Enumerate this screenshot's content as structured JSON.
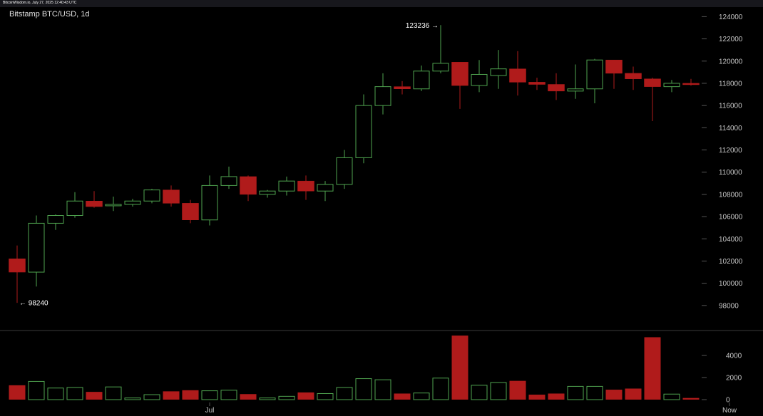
{
  "header": {
    "source_text": "BitcoinWisdom.io, July 27, 2025 12:40:43 UTC"
  },
  "chart_data": {
    "type": "candlestick",
    "title": "Bitstamp BTC/USD, 1d",
    "price_axis": {
      "ticks": [
        98000,
        100000,
        102000,
        104000,
        106000,
        108000,
        110000,
        112000,
        114000,
        116000,
        118000,
        120000,
        122000,
        124000
      ],
      "range": [
        96000,
        125500
      ]
    },
    "volume_axis": {
      "ticks": [
        0,
        2000,
        4000
      ],
      "range": [
        0,
        6000
      ]
    },
    "x_tick_labels": [
      {
        "index": 10,
        "label": "Jul"
      },
      {
        "index": 37,
        "label": "Now"
      }
    ],
    "annotations": [
      {
        "index": 0,
        "value": 98240,
        "text": "← 98240",
        "side": "right"
      },
      {
        "index": 22,
        "value": 123236,
        "text": "123236 →",
        "side": "left"
      }
    ],
    "candles": [
      {
        "o": 102200,
        "h": 103400,
        "l": 98240,
        "c": 101000
      },
      {
        "o": 101000,
        "h": 106100,
        "l": 99700,
        "c": 105400
      },
      {
        "o": 105400,
        "h": 106200,
        "l": 104800,
        "c": 106100
      },
      {
        "o": 106100,
        "h": 108200,
        "l": 105900,
        "c": 107400
      },
      {
        "o": 107400,
        "h": 108300,
        "l": 106800,
        "c": 106900
      },
      {
        "o": 107000,
        "h": 107800,
        "l": 106500,
        "c": 107100
      },
      {
        "o": 107100,
        "h": 107600,
        "l": 106900,
        "c": 107400
      },
      {
        "o": 107400,
        "h": 108500,
        "l": 107200,
        "c": 108400
      },
      {
        "o": 108400,
        "h": 108800,
        "l": 106900,
        "c": 107200
      },
      {
        "o": 107200,
        "h": 107500,
        "l": 105400,
        "c": 105700
      },
      {
        "o": 105700,
        "h": 109700,
        "l": 105200,
        "c": 108800
      },
      {
        "o": 108800,
        "h": 110500,
        "l": 108500,
        "c": 109600
      },
      {
        "o": 109600,
        "h": 109700,
        "l": 107400,
        "c": 108000
      },
      {
        "o": 108000,
        "h": 108400,
        "l": 107700,
        "c": 108300
      },
      {
        "o": 108300,
        "h": 109600,
        "l": 107900,
        "c": 109200
      },
      {
        "o": 109200,
        "h": 109700,
        "l": 107500,
        "c": 108300
      },
      {
        "o": 108300,
        "h": 109200,
        "l": 107400,
        "c": 108900
      },
      {
        "o": 108900,
        "h": 112000,
        "l": 108500,
        "c": 111300
      },
      {
        "o": 111300,
        "h": 117000,
        "l": 110800,
        "c": 116000
      },
      {
        "o": 116000,
        "h": 118900,
        "l": 115200,
        "c": 117700
      },
      {
        "o": 117700,
        "h": 118200,
        "l": 117000,
        "c": 117500
      },
      {
        "o": 117500,
        "h": 119600,
        "l": 117300,
        "c": 119100
      },
      {
        "o": 119100,
        "h": 123236,
        "l": 118900,
        "c": 119800
      },
      {
        "o": 119900,
        "h": 119900,
        "l": 115700,
        "c": 117800
      },
      {
        "o": 117800,
        "h": 120100,
        "l": 117200,
        "c": 118800
      },
      {
        "o": 118700,
        "h": 121000,
        "l": 117500,
        "c": 119300
      },
      {
        "o": 119300,
        "h": 120900,
        "l": 116900,
        "c": 118100
      },
      {
        "o": 118100,
        "h": 118500,
        "l": 117400,
        "c": 117900
      },
      {
        "o": 117900,
        "h": 118900,
        "l": 116500,
        "c": 117300
      },
      {
        "o": 117300,
        "h": 119700,
        "l": 116600,
        "c": 117500
      },
      {
        "o": 117500,
        "h": 120200,
        "l": 116200,
        "c": 120100
      },
      {
        "o": 120100,
        "h": 120100,
        "l": 117500,
        "c": 118900
      },
      {
        "o": 118900,
        "h": 119500,
        "l": 117400,
        "c": 118400
      },
      {
        "o": 118400,
        "h": 118500,
        "l": 114600,
        "c": 117700
      },
      {
        "o": 117700,
        "h": 118300,
        "l": 117200,
        "c": 118000
      },
      {
        "o": 118000,
        "h": 118400,
        "l": 117800,
        "c": 117900
      }
    ],
    "volumes": [
      1300,
      1650,
      1050,
      1100,
      700,
      1150,
      150,
      450,
      750,
      850,
      800,
      850,
      500,
      150,
      300,
      650,
      550,
      1100,
      1900,
      1800,
      550,
      600,
      1950,
      5800,
      1300,
      1550,
      1700,
      450,
      550,
      1200,
      1200,
      900,
      1000,
      5650,
      500,
      150
    ]
  },
  "colors": {
    "background": "#000000",
    "up": "#4fa34f",
    "down": "#b01b1b",
    "axis_tick": "#555555",
    "divider": "#3a3a3a"
  }
}
